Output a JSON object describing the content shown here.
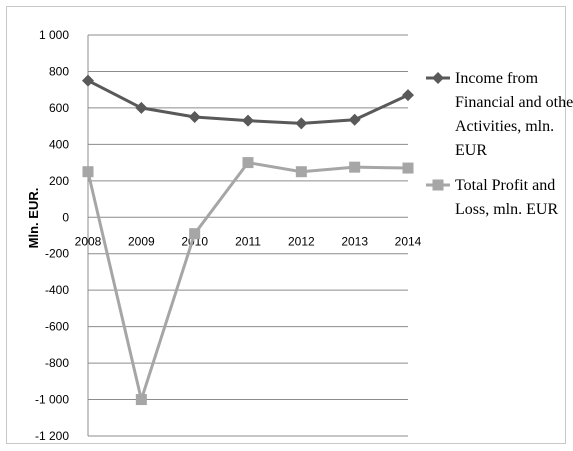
{
  "chart_data": {
    "type": "line",
    "title": "",
    "xlabel": "",
    "ylabel": "Mln. EUR.",
    "categories": [
      "2008",
      "2009",
      "2010",
      "2011",
      "2012",
      "2013",
      "2014"
    ],
    "ylim": [
      -1200,
      1000
    ],
    "yticks": [
      1000,
      800,
      600,
      400,
      200,
      0,
      -200,
      -400,
      -600,
      -800,
      -1000,
      -1200
    ],
    "ytick_labels": [
      "1 000",
      "800",
      "600",
      "400",
      "200",
      "0",
      "-200",
      "-400",
      "-600",
      "-800",
      "-1 000",
      "-1 200"
    ],
    "grid": true,
    "legend_position": "right",
    "series": [
      {
        "name": "Income from Financial and other Activities, mln. EUR",
        "legend_lines": [
          "Income from",
          "Financial and other",
          "Activities, mln.",
          "EUR"
        ],
        "marker": "diamond",
        "color": "#595959",
        "values": [
          750,
          600,
          550,
          530,
          515,
          535,
          670
        ]
      },
      {
        "name": "Total Profit and Loss, mln. EUR",
        "legend_lines": [
          "Total Profit and",
          "Loss, mln. EUR"
        ],
        "marker": "square",
        "color": "#a6a6a6",
        "values": [
          250,
          -1000,
          -90,
          300,
          250,
          275,
          270
        ]
      }
    ]
  }
}
